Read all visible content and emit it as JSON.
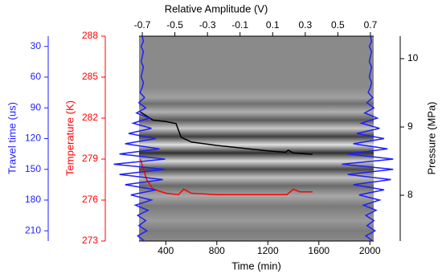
{
  "chart_data": {
    "type": "line",
    "axes": {
      "top": {
        "label": "Relative Amplitude (V)",
        "color": "#000000",
        "lim": [
          -0.72,
          0.72
        ],
        "ticks": [
          -0.7,
          -0.5,
          -0.3,
          -0.1,
          0.1,
          0.3,
          0.5,
          0.7
        ]
      },
      "bottom": {
        "label": "Time (min)",
        "color": "#000000",
        "lim": [
          190,
          2030
        ],
        "ticks": [
          400,
          800,
          1200,
          1600,
          2000
        ]
      },
      "travel": {
        "label": "Travel time (us)",
        "color": "#1f1fff",
        "lim": [
          220,
          20
        ],
        "ticks": [
          30,
          60,
          90,
          120,
          150,
          180,
          210
        ]
      },
      "temperature": {
        "label": "Temperature (K)",
        "color": "#ff0000",
        "lim": [
          273,
          288
        ],
        "ticks": [
          273,
          276,
          279,
          282,
          285,
          288
        ]
      },
      "pressure": {
        "label": "Pressure (MPa)",
        "color": "#000000",
        "lim": [
          7.33,
          10.33
        ],
        "ticks": [
          8,
          9,
          10
        ]
      }
    },
    "series": [
      {
        "color": "#000000",
        "x_axis": "bottom",
        "y_axis": "pressure",
        "x": [
          200,
          300,
          400,
          480,
          520,
          600,
          800,
          1000,
          1200,
          1340,
          1360,
          1400,
          1550
        ],
        "values": [
          9.22,
          9.1,
          9.08,
          9.05,
          8.85,
          8.78,
          8.73,
          8.69,
          8.65,
          8.63,
          8.66,
          8.62,
          8.6
        ]
      },
      {
        "color": "#ff0000",
        "x_axis": "bottom",
        "y_axis": "temperature",
        "x": [
          200,
          250,
          300,
          400,
          500,
          540,
          600,
          800,
          1200,
          1350,
          1400,
          1450,
          1550
        ],
        "values": [
          279,
          277.5,
          276.8,
          276.5,
          276.4,
          276.8,
          276.5,
          276.4,
          276.4,
          276.4,
          276.8,
          276.6,
          276.6
        ]
      },
      {
        "color": "#1f1fff",
        "x_axis": "top",
        "y_axis": "travel",
        "x": [
          -0.7,
          -0.693,
          -0.707,
          -0.693,
          -0.7,
          -0.707,
          -0.693,
          -0.7,
          -0.707,
          -0.693,
          -0.7,
          -0.714,
          -0.686,
          -0.721,
          -0.679,
          -0.735,
          -0.658,
          -0.756,
          -0.644,
          -0.784,
          -0.616,
          -0.805,
          -0.595,
          -0.84,
          -0.56,
          -0.875,
          -0.56,
          -0.84,
          -0.574,
          -0.805,
          -0.616,
          -0.77,
          -0.644,
          -0.742,
          -0.665,
          -0.728,
          -0.679,
          -0.721,
          -0.672,
          -0.728,
          -0.686
        ],
        "values": [
          20,
          25,
          30,
          35,
          40,
          45,
          50,
          55,
          60,
          65,
          70,
          75,
          80,
          85,
          90,
          95,
          100,
          105,
          110,
          115,
          120,
          125,
          130,
          135,
          140,
          145,
          150,
          155,
          160,
          165,
          170,
          175,
          180,
          185,
          190,
          195,
          200,
          205,
          210,
          215,
          220
        ]
      },
      {
        "color": "#1f1fff",
        "x_axis": "top",
        "y_axis": "travel",
        "x": [
          0.7,
          0.707,
          0.693,
          0.707,
          0.7,
          0.693,
          0.707,
          0.7,
          0.693,
          0.707,
          0.7,
          0.686,
          0.714,
          0.679,
          0.721,
          0.665,
          0.742,
          0.644,
          0.756,
          0.616,
          0.784,
          0.595,
          0.805,
          0.56,
          0.84,
          0.525,
          0.84,
          0.56,
          0.826,
          0.595,
          0.784,
          0.63,
          0.756,
          0.658,
          0.735,
          0.672,
          0.721,
          0.679,
          0.728,
          0.672,
          0.714
        ],
        "values": [
          20,
          25,
          30,
          35,
          40,
          45,
          50,
          55,
          60,
          65,
          70,
          75,
          80,
          85,
          90,
          95,
          100,
          105,
          110,
          115,
          120,
          125,
          130,
          135,
          140,
          145,
          150,
          155,
          160,
          165,
          170,
          175,
          180,
          185,
          190,
          195,
          200,
          205,
          210,
          215,
          220
        ]
      }
    ]
  }
}
